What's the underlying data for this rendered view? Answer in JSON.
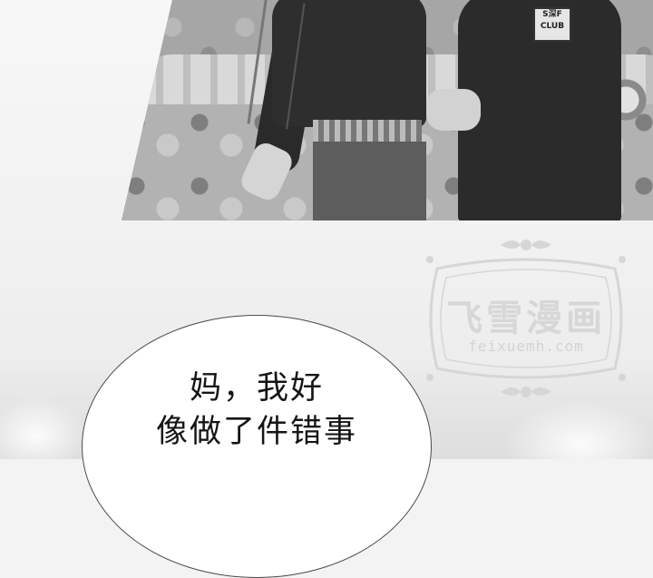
{
  "photo_panel": {
    "shirt_logo_line1": "S深F",
    "shirt_logo_line2": "CLUB"
  },
  "watermark": {
    "title": "飞雪漫画",
    "url": "feixuemh.com"
  },
  "speech_bubble": {
    "lines": [
      "妈，我好",
      "像做了件错事"
    ]
  },
  "colors": {
    "panel_bg": "#9a9a9a",
    "bubble_fill": "#ffffff",
    "bubble_stroke": "#4a4a4a",
    "watermark": "#d7d7d7"
  }
}
